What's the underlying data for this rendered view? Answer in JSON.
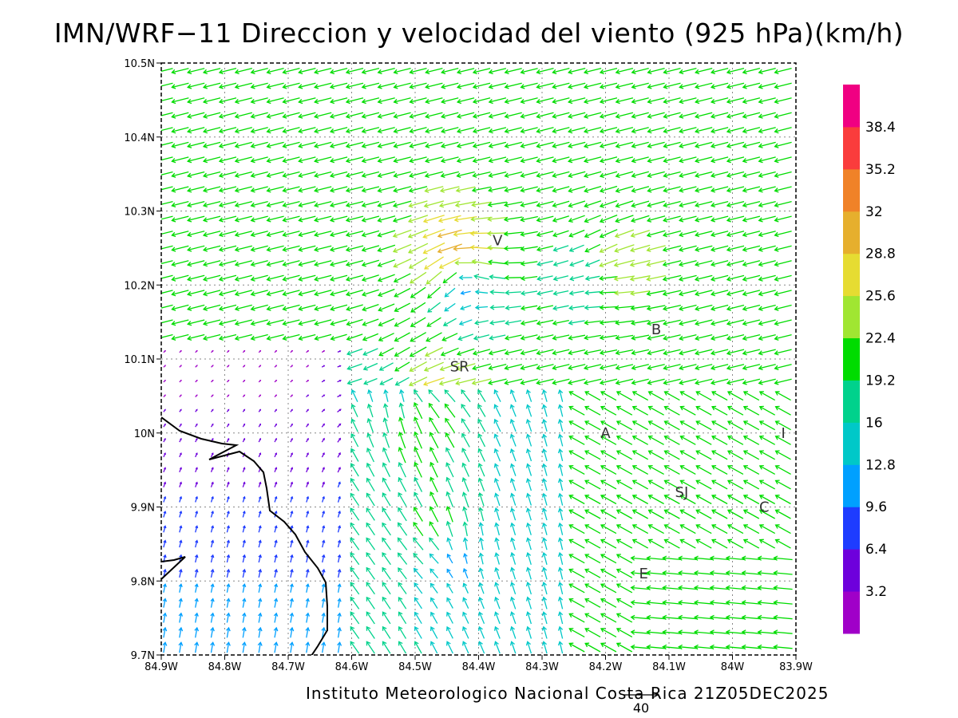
{
  "title": "IMN/WRF−11 Direccion y velocidad del viento (925 hPa)(km/h)",
  "footer": "Instituto Meteorologico Nacional Costa Rica  21Z05DEC2025",
  "reference_vector": {
    "label": "40",
    "value": 40
  },
  "map": {
    "lon_range": [
      -84.9,
      -83.9
    ],
    "lat_range": [
      9.7,
      10.5
    ],
    "lon_ticks": [
      "84.9W",
      "84.8W",
      "84.7W",
      "84.6W",
      "84.5W",
      "84.4W",
      "84.3W",
      "84.2W",
      "84.1W",
      "84W",
      "83.9W"
    ],
    "lat_ticks": [
      "9.7N",
      "9.8N",
      "9.9N",
      "10N",
      "10.1N",
      "10.2N",
      "10.3N",
      "10.4N",
      "10.5N"
    ],
    "grid": true,
    "coastline_color": "#000000"
  },
  "colorbar": {
    "levels": [
      "3.2",
      "6.4",
      "9.6",
      "12.8",
      "16",
      "19.2",
      "22.4",
      "25.6",
      "28.8",
      "32",
      "35.2",
      "38.4"
    ],
    "colors": [
      "#a000c8",
      "#6e00dc",
      "#1e3cff",
      "#00a0ff",
      "#00c8c8",
      "#00d28c",
      "#00dc00",
      "#a0e632",
      "#e6dc32",
      "#e6af2d",
      "#f08228",
      "#fa3c3c",
      "#f00082"
    ]
  },
  "places": [
    {
      "label": "V",
      "lon": -84.37,
      "lat": 10.26
    },
    {
      "label": "SR",
      "lon": -84.43,
      "lat": 10.09
    },
    {
      "label": "B",
      "lon": -84.12,
      "lat": 10.14
    },
    {
      "label": "A",
      "lon": -84.2,
      "lat": 10.0
    },
    {
      "label": "I",
      "lon": -83.92,
      "lat": 10.0
    },
    {
      "label": "SJ",
      "lon": -84.08,
      "lat": 9.92
    },
    {
      "label": "C",
      "lon": -83.95,
      "lat": 9.9
    },
    {
      "label": "E",
      "lon": -84.14,
      "lat": 9.81
    }
  ]
}
